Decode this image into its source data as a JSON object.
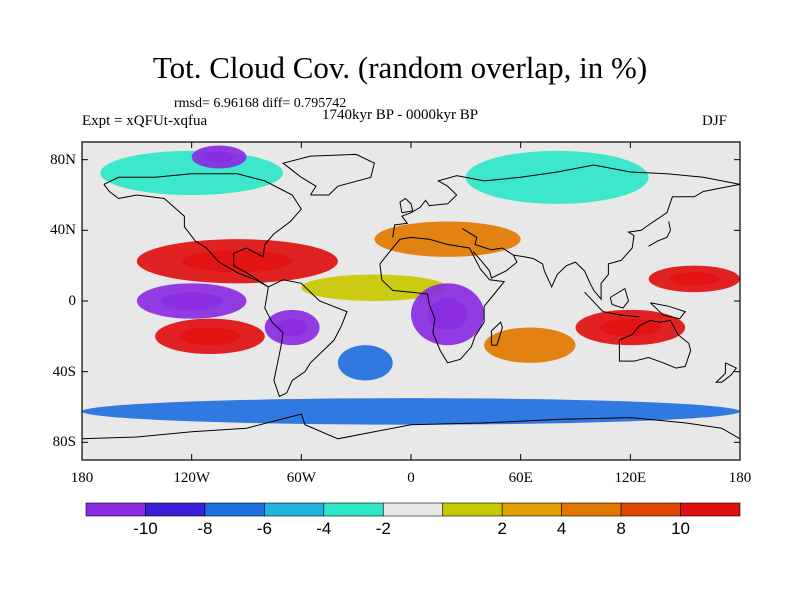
{
  "title": "Tot. Cloud Cov. (random overlap, in %)",
  "stats": "rmsd= 6.96168  diff= 0.795742",
  "experiment": "Expt = xQFUt-xqfua",
  "period": "1740kyr BP - 0000kyr BP",
  "season": "DJF",
  "map": {
    "lon_range": [
      -180,
      180
    ],
    "lat_range": [
      -90,
      90
    ],
    "x_ticks": [
      {
        "lon": -180,
        "label": "180"
      },
      {
        "lon": -120,
        "label": "120W"
      },
      {
        "lon": -60,
        "label": "60W"
      },
      {
        "lon": 0,
        "label": "0"
      },
      {
        "lon": 60,
        "label": "60E"
      },
      {
        "lon": 120,
        "label": "120E"
      },
      {
        "lon": 180,
        "label": "180"
      }
    ],
    "y_ticks": [
      {
        "lat": 80,
        "label": "80N"
      },
      {
        "lat": 40,
        "label": "40N"
      },
      {
        "lat": 0,
        "label": "0"
      },
      {
        "lat": -40,
        "label": "40S"
      },
      {
        "lat": -80,
        "label": "80S"
      }
    ]
  },
  "colorbar": {
    "colors": [
      "#8a2be2",
      "#3a1fd6",
      "#1f6fe0",
      "#1fb3e0",
      "#2ee6c8",
      "#e8e8e8",
      "#c8c800",
      "#e0a000",
      "#e07800",
      "#e04800",
      "#e01010"
    ],
    "labels": [
      "-10",
      "-8",
      "-6",
      "-4",
      "-2",
      "2",
      "4",
      "8",
      "10"
    ]
  },
  "field_regions": [
    {
      "cls": "pos_strong",
      "lon": [
        -150,
        -40
      ],
      "lat": [
        10,
        35
      ]
    },
    {
      "cls": "pos_strong",
      "lon": [
        -140,
        -80
      ],
      "lat": [
        -30,
        -10
      ]
    },
    {
      "cls": "pos_strong",
      "lon": [
        130,
        180
      ],
      "lat": [
        5,
        20
      ]
    },
    {
      "cls": "pos_strong",
      "lon": [
        90,
        150
      ],
      "lat": [
        -25,
        -5
      ]
    },
    {
      "cls": "pos_mid",
      "lon": [
        -20,
        60
      ],
      "lat": [
        25,
        45
      ]
    },
    {
      "cls": "pos_mid",
      "lon": [
        40,
        90
      ],
      "lat": [
        -35,
        -15
      ]
    },
    {
      "cls": "pos_weak",
      "lon": [
        -60,
        20
      ],
      "lat": [
        0,
        15
      ]
    },
    {
      "cls": "neg_strong",
      "lon": [
        -150,
        -90
      ],
      "lat": [
        -10,
        10
      ]
    },
    {
      "cls": "neg_strong",
      "lon": [
        0,
        40
      ],
      "lat": [
        -25,
        10
      ]
    },
    {
      "cls": "neg_strong",
      "lon": [
        -80,
        -50
      ],
      "lat": [
        -25,
        -5
      ]
    },
    {
      "cls": "neg_mid",
      "lon": [
        -40,
        -10
      ],
      "lat": [
        -45,
        -25
      ]
    },
    {
      "cls": "neg_mid",
      "lon": [
        -180,
        180
      ],
      "lat": [
        -70,
        -55
      ]
    },
    {
      "cls": "neg_weak",
      "lon": [
        -170,
        -70
      ],
      "lat": [
        60,
        85
      ]
    },
    {
      "cls": "neg_weak",
      "lon": [
        30,
        130
      ],
      "lat": [
        55,
        85
      ]
    },
    {
      "cls": "neg_strong",
      "lon": [
        -120,
        -90
      ],
      "lat": [
        75,
        88
      ]
    }
  ]
}
